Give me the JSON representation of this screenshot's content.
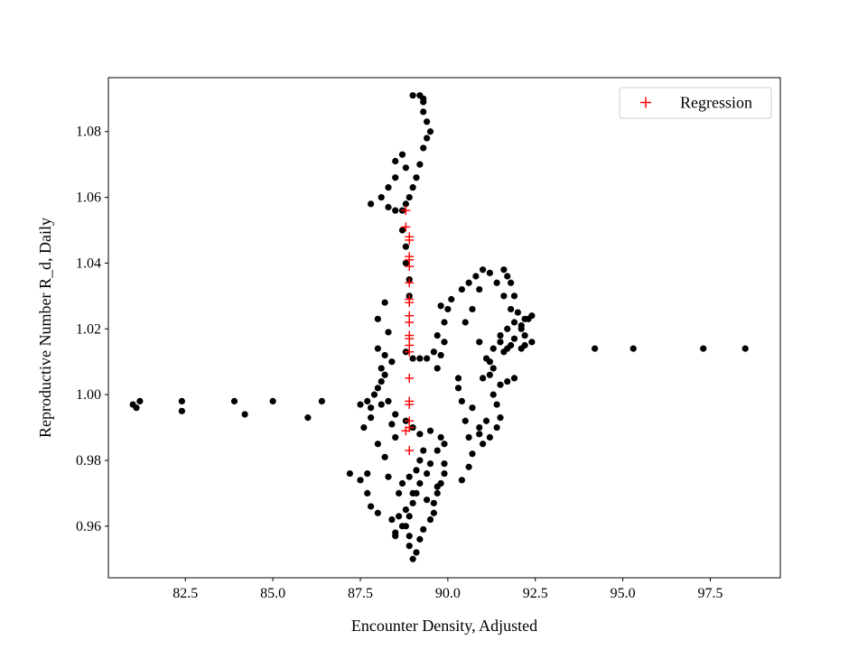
{
  "chart_data": {
    "type": "scatter",
    "title": "",
    "xlabel": "Encounter Density, Adjusted",
    "ylabel": "Reproductive Number R_d, Daily",
    "xlim": [
      80.3,
      99.5
    ],
    "ylim": [
      0.9443,
      1.0964
    ],
    "xticks": [
      "82.5",
      "85.0",
      "87.5",
      "90.0",
      "92.5",
      "95.0",
      "97.5"
    ],
    "yticks": [
      "0.96",
      "0.98",
      "1.00",
      "1.02",
      "1.04",
      "1.06",
      "1.08"
    ],
    "grid": false,
    "legend": {
      "position": "top-right",
      "entries": [
        "Regression"
      ]
    },
    "series": [
      {
        "marker": "dot",
        "color": "#000000",
        "points": [
          [
            81.0,
            0.997
          ],
          [
            81.2,
            0.998
          ],
          [
            81.1,
            0.996
          ],
          [
            82.4,
            0.998
          ],
          [
            82.4,
            0.995
          ],
          [
            83.9,
            0.998
          ],
          [
            84.2,
            0.994
          ],
          [
            85.0,
            0.998
          ],
          [
            86.0,
            0.993
          ],
          [
            86.4,
            0.998
          ],
          [
            94.2,
            1.014
          ],
          [
            95.3,
            1.014
          ],
          [
            97.3,
            1.014
          ],
          [
            98.5,
            1.014
          ],
          [
            87.8,
            1.058
          ],
          [
            88.1,
            1.06
          ],
          [
            88.3,
            1.063
          ],
          [
            88.5,
            1.066
          ],
          [
            88.5,
            1.071
          ],
          [
            88.7,
            1.073
          ],
          [
            88.8,
            1.069
          ],
          [
            88.3,
            1.057
          ],
          [
            88.5,
            1.056
          ],
          [
            88.7,
            1.056
          ],
          [
            88.8,
            1.058
          ],
          [
            88.9,
            1.06
          ],
          [
            89.0,
            1.063
          ],
          [
            89.1,
            1.066
          ],
          [
            89.2,
            1.07
          ],
          [
            89.3,
            1.075
          ],
          [
            89.4,
            1.078
          ],
          [
            89.5,
            1.08
          ],
          [
            89.4,
            1.083
          ],
          [
            89.3,
            1.086
          ],
          [
            89.3,
            1.089
          ],
          [
            89.0,
            1.091
          ],
          [
            89.2,
            1.091
          ],
          [
            89.3,
            1.09
          ],
          [
            88.7,
            1.05
          ],
          [
            88.8,
            1.045
          ],
          [
            88.8,
            1.04
          ],
          [
            88.9,
            1.035
          ],
          [
            88.9,
            1.03
          ],
          [
            88.2,
            1.028
          ],
          [
            88.0,
            1.023
          ],
          [
            88.3,
            1.019
          ],
          [
            88.0,
            1.014
          ],
          [
            88.2,
            1.012
          ],
          [
            88.4,
            1.01
          ],
          [
            88.1,
            1.008
          ],
          [
            88.2,
            1.006
          ],
          [
            88.1,
            1.004
          ],
          [
            88.0,
            1.002
          ],
          [
            87.9,
            1.0
          ],
          [
            87.7,
            0.998
          ],
          [
            87.5,
            0.997
          ],
          [
            87.8,
            0.996
          ],
          [
            88.1,
            0.997
          ],
          [
            88.3,
            0.998
          ],
          [
            88.8,
            1.013
          ],
          [
            89.0,
            1.011
          ],
          [
            89.2,
            1.011
          ],
          [
            89.4,
            1.011
          ],
          [
            89.6,
            1.013
          ],
          [
            89.7,
            1.018
          ],
          [
            89.9,
            1.022
          ],
          [
            90.0,
            1.026
          ],
          [
            90.1,
            1.029
          ],
          [
            89.8,
            1.027
          ],
          [
            89.9,
            1.016
          ],
          [
            89.8,
            1.012
          ],
          [
            89.7,
            1.008
          ],
          [
            87.8,
            0.993
          ],
          [
            87.6,
            0.99
          ],
          [
            88.0,
            0.985
          ],
          [
            88.2,
            0.981
          ],
          [
            88.5,
            0.987
          ],
          [
            88.5,
            0.994
          ],
          [
            88.4,
            0.991
          ],
          [
            88.8,
            0.992
          ],
          [
            89.0,
            0.99
          ],
          [
            89.2,
            0.988
          ],
          [
            89.5,
            0.989
          ],
          [
            89.8,
            0.987
          ],
          [
            89.9,
            0.985
          ],
          [
            89.7,
            0.983
          ],
          [
            89.5,
            0.979
          ],
          [
            89.4,
            0.976
          ],
          [
            89.2,
            0.973
          ],
          [
            89.0,
            0.97
          ],
          [
            89.0,
            0.967
          ],
          [
            88.9,
            0.963
          ],
          [
            88.8,
            0.96
          ],
          [
            88.9,
            0.957
          ],
          [
            88.9,
            0.954
          ],
          [
            89.1,
            0.952
          ],
          [
            89.0,
            0.95
          ],
          [
            89.2,
            0.956
          ],
          [
            89.3,
            0.959
          ],
          [
            89.5,
            0.962
          ],
          [
            89.6,
            0.964
          ],
          [
            89.6,
            0.967
          ],
          [
            89.7,
            0.97
          ],
          [
            89.8,
            0.973
          ],
          [
            89.9,
            0.976
          ],
          [
            89.9,
            0.979
          ],
          [
            89.7,
            0.972
          ],
          [
            89.4,
            0.968
          ],
          [
            87.2,
            0.976
          ],
          [
            87.5,
            0.974
          ],
          [
            87.7,
            0.976
          ],
          [
            87.7,
            0.97
          ],
          [
            87.8,
            0.966
          ],
          [
            88.0,
            0.964
          ],
          [
            88.4,
            0.962
          ],
          [
            88.5,
            0.958
          ],
          [
            88.5,
            0.957
          ],
          [
            88.7,
            0.96
          ],
          [
            88.6,
            0.963
          ],
          [
            88.8,
            0.965
          ],
          [
            88.7,
            0.973
          ],
          [
            88.6,
            0.97
          ],
          [
            88.3,
            0.975
          ],
          [
            88.9,
            0.975
          ],
          [
            89.1,
            0.977
          ],
          [
            89.2,
            0.98
          ],
          [
            89.3,
            0.983
          ],
          [
            89.1,
            0.97
          ],
          [
            90.4,
            0.974
          ],
          [
            90.6,
            0.978
          ],
          [
            90.7,
            0.982
          ],
          [
            90.6,
            0.987
          ],
          [
            90.5,
            0.992
          ],
          [
            90.4,
            0.998
          ],
          [
            90.3,
            1.002
          ],
          [
            90.3,
            1.005
          ],
          [
            90.7,
            0.996
          ],
          [
            90.9,
            0.99
          ],
          [
            91.0,
            0.985
          ],
          [
            91.2,
            0.987
          ],
          [
            91.4,
            0.99
          ],
          [
            91.5,
            0.993
          ],
          [
            91.4,
            0.997
          ],
          [
            91.3,
            1.0
          ],
          [
            91.1,
            0.992
          ],
          [
            90.9,
            0.988
          ],
          [
            91.0,
            1.005
          ],
          [
            91.2,
            1.01
          ],
          [
            91.3,
            1.014
          ],
          [
            91.5,
            1.018
          ],
          [
            91.7,
            1.02
          ],
          [
            91.9,
            1.022
          ],
          [
            91.8,
            1.026
          ],
          [
            91.6,
            1.03
          ],
          [
            91.4,
            1.034
          ],
          [
            91.2,
            1.037
          ],
          [
            91.0,
            1.038
          ],
          [
            90.8,
            1.036
          ],
          [
            90.6,
            1.034
          ],
          [
            90.9,
            1.032
          ],
          [
            91.6,
            1.038
          ],
          [
            91.7,
            1.036
          ],
          [
            91.8,
            1.034
          ],
          [
            91.9,
            1.03
          ],
          [
            92.0,
            1.025
          ],
          [
            92.1,
            1.021
          ],
          [
            92.2,
            1.018
          ],
          [
            92.1,
            1.014
          ],
          [
            92.2,
            1.015
          ],
          [
            92.4,
            1.016
          ],
          [
            92.4,
            1.024
          ],
          [
            92.3,
            1.023
          ],
          [
            92.2,
            1.023
          ],
          [
            92.1,
            1.02
          ],
          [
            91.9,
            1.017
          ],
          [
            91.8,
            1.015
          ],
          [
            91.7,
            1.014
          ],
          [
            91.6,
            1.013
          ],
          [
            91.5,
            1.016
          ],
          [
            91.5,
            1.003
          ],
          [
            91.7,
            1.004
          ],
          [
            91.9,
            1.005
          ],
          [
            91.2,
            1.006
          ],
          [
            91.3,
            1.008
          ],
          [
            91.1,
            1.011
          ],
          [
            90.9,
            1.016
          ],
          [
            90.5,
            1.022
          ],
          [
            90.7,
            1.026
          ],
          [
            90.4,
            1.032
          ]
        ]
      },
      {
        "name": "Regression",
        "marker": "plus",
        "color": "#ff0000",
        "points": [
          [
            88.8,
            1.056
          ],
          [
            88.8,
            1.051
          ],
          [
            88.9,
            1.048
          ],
          [
            88.9,
            1.047
          ],
          [
            88.9,
            1.042
          ],
          [
            88.9,
            1.041
          ],
          [
            88.9,
            1.039
          ],
          [
            88.9,
            1.034
          ],
          [
            88.9,
            1.029
          ],
          [
            88.9,
            1.028
          ],
          [
            88.9,
            1.024
          ],
          [
            88.9,
            1.022
          ],
          [
            88.9,
            1.018
          ],
          [
            88.9,
            1.017
          ],
          [
            88.9,
            1.015
          ],
          [
            88.9,
            1.013
          ],
          [
            88.9,
            1.005
          ],
          [
            88.9,
            0.998
          ],
          [
            88.9,
            0.997
          ],
          [
            88.9,
            0.992
          ],
          [
            88.9,
            0.99
          ],
          [
            88.8,
            0.989
          ],
          [
            88.9,
            0.983
          ]
        ]
      }
    ]
  }
}
